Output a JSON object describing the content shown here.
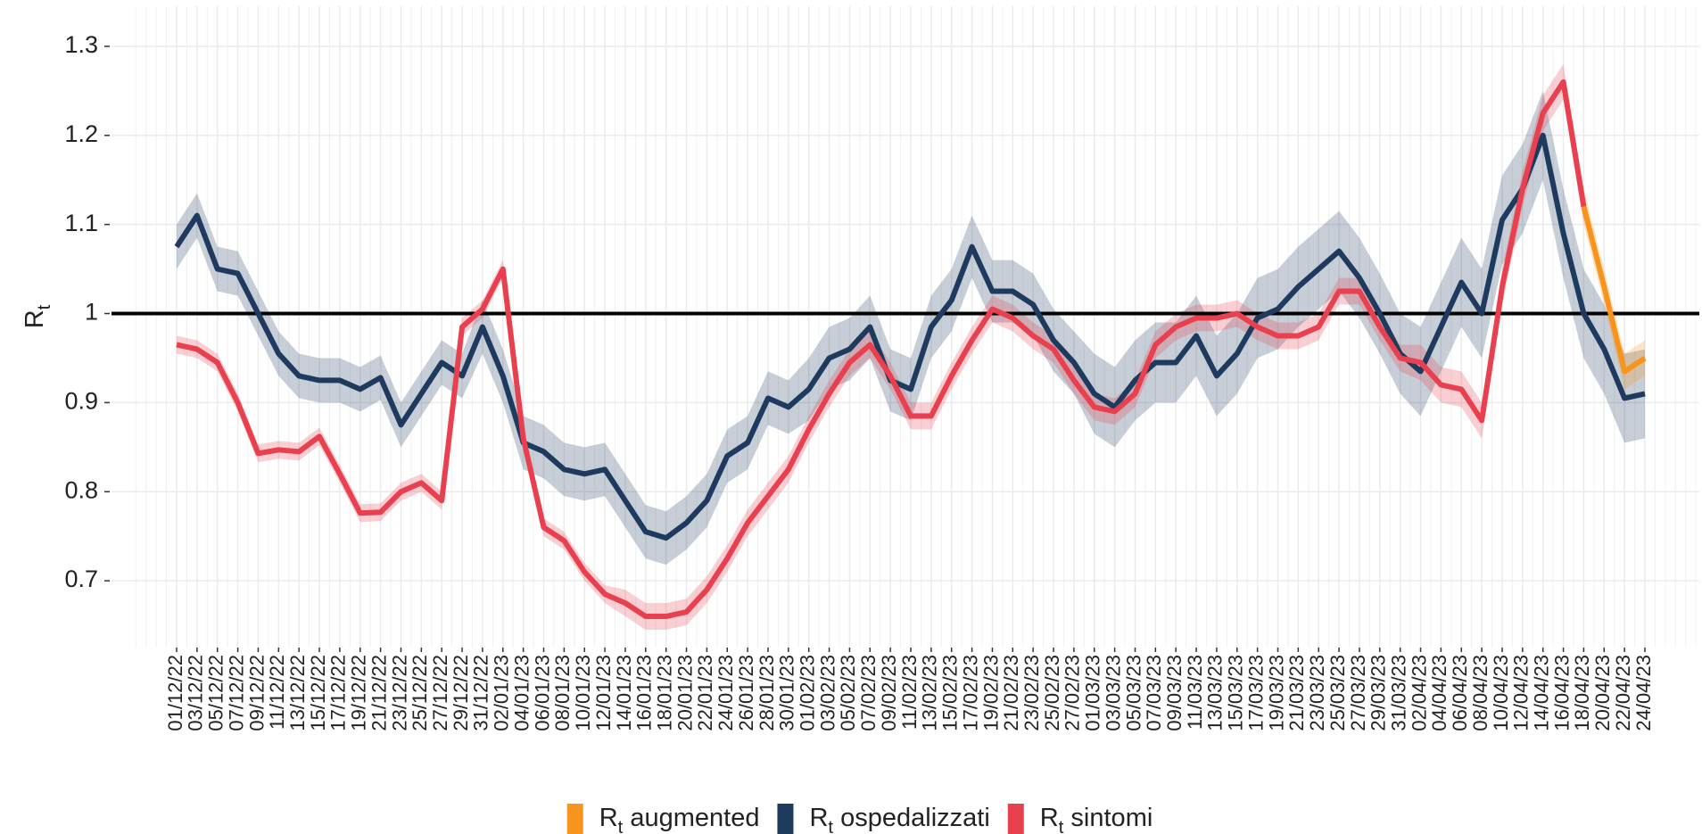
{
  "chart_data": {
    "type": "line",
    "y_label": "Rt",
    "categories": [
      "01/12/22",
      "03/12/22",
      "05/12/22",
      "07/12/22",
      "09/12/22",
      "11/12/22",
      "13/12/22",
      "15/12/22",
      "17/12/22",
      "19/12/22",
      "21/12/22",
      "23/12/22",
      "25/12/22",
      "27/12/22",
      "29/12/22",
      "31/12/22",
      "02/01/23",
      "04/01/23",
      "06/01/23",
      "08/01/23",
      "10/01/23",
      "12/01/23",
      "14/01/23",
      "16/01/23",
      "18/01/23",
      "20/01/23",
      "22/01/23",
      "24/01/23",
      "26/01/23",
      "28/01/23",
      "30/01/23",
      "01/02/23",
      "03/02/23",
      "05/02/23",
      "07/02/23",
      "09/02/23",
      "11/02/23",
      "13/02/23",
      "15/02/23",
      "17/02/23",
      "19/02/23",
      "21/02/23",
      "23/02/23",
      "25/02/23",
      "27/02/23",
      "01/03/23",
      "03/03/23",
      "05/03/23",
      "07/03/23",
      "09/03/23",
      "11/03/23",
      "13/03/23",
      "15/03/23",
      "17/03/23",
      "19/03/23",
      "21/03/23",
      "23/03/23",
      "25/03/23",
      "27/03/23",
      "29/03/23",
      "31/03/23",
      "02/04/23",
      "04/04/23",
      "06/04/23",
      "08/04/23",
      "10/04/23",
      "12/04/23",
      "14/04/23",
      "16/04/23",
      "18/04/23",
      "20/04/23",
      "22/04/23",
      "24/04/23"
    ],
    "ylim": [
      0.625,
      1.345
    ],
    "yticks": [
      0.7,
      0.8,
      0.9,
      1.0,
      1.1,
      1.2,
      1.3
    ],
    "hline": 1.0,
    "grid": true,
    "legend": "bottom",
    "series": [
      {
        "name": "Rt augmented",
        "color": "#f7941d",
        "values": [
          null,
          null,
          null,
          null,
          null,
          null,
          null,
          null,
          null,
          null,
          null,
          null,
          null,
          null,
          null,
          null,
          null,
          null,
          null,
          null,
          null,
          null,
          null,
          null,
          null,
          null,
          null,
          null,
          null,
          null,
          null,
          null,
          null,
          null,
          null,
          null,
          null,
          null,
          null,
          null,
          null,
          null,
          null,
          null,
          null,
          null,
          null,
          null,
          null,
          null,
          null,
          null,
          null,
          null,
          null,
          null,
          null,
          null,
          null,
          null,
          null,
          null,
          null,
          null,
          null,
          null,
          null,
          null,
          null,
          1.12,
          1.03,
          0.935,
          0.95
        ],
        "lower": [
          null,
          null,
          null,
          null,
          null,
          null,
          null,
          null,
          null,
          null,
          null,
          null,
          null,
          null,
          null,
          null,
          null,
          null,
          null,
          null,
          null,
          null,
          null,
          null,
          null,
          null,
          null,
          null,
          null,
          null,
          null,
          null,
          null,
          null,
          null,
          null,
          null,
          null,
          null,
          null,
          null,
          null,
          null,
          null,
          null,
          null,
          null,
          null,
          null,
          null,
          null,
          null,
          null,
          null,
          null,
          null,
          null,
          null,
          null,
          null,
          null,
          null,
          null,
          null,
          null,
          null,
          null,
          null,
          null,
          1.1,
          1.01,
          0.915,
          0.93
        ],
        "upper": [
          null,
          null,
          null,
          null,
          null,
          null,
          null,
          null,
          null,
          null,
          null,
          null,
          null,
          null,
          null,
          null,
          null,
          null,
          null,
          null,
          null,
          null,
          null,
          null,
          null,
          null,
          null,
          null,
          null,
          null,
          null,
          null,
          null,
          null,
          null,
          null,
          null,
          null,
          null,
          null,
          null,
          null,
          null,
          null,
          null,
          null,
          null,
          null,
          null,
          null,
          null,
          null,
          null,
          null,
          null,
          null,
          null,
          null,
          null,
          null,
          null,
          null,
          null,
          null,
          null,
          null,
          null,
          null,
          null,
          1.14,
          1.05,
          0.955,
          0.97
        ]
      },
      {
        "name": "Rt ospedalizzati",
        "color": "#1f3a5f",
        "values": [
          1.075,
          1.11,
          1.05,
          1.045,
          1.0,
          0.955,
          0.93,
          0.925,
          0.925,
          0.915,
          0.928,
          0.875,
          0.91,
          0.945,
          0.93,
          0.985,
          0.93,
          0.855,
          0.845,
          0.825,
          0.82,
          0.825,
          0.79,
          0.755,
          0.748,
          0.765,
          0.79,
          0.84,
          0.855,
          0.905,
          0.895,
          0.915,
          0.95,
          0.96,
          0.985,
          0.925,
          0.915,
          0.985,
          1.015,
          1.075,
          1.025,
          1.025,
          1.01,
          0.97,
          0.945,
          0.91,
          0.895,
          0.925,
          0.945,
          0.945,
          0.975,
          0.93,
          0.955,
          0.995,
          1.005,
          1.03,
          1.05,
          1.07,
          1.04,
          1.0,
          0.955,
          0.935,
          0.985,
          1.035,
          1.0,
          1.105,
          1.14,
          1.2,
          1.09,
          1.0,
          0.96,
          0.905,
          0.91
        ],
        "lower": [
          1.05,
          1.085,
          1.025,
          1.02,
          0.975,
          0.93,
          0.905,
          0.9,
          0.9,
          0.89,
          0.903,
          0.85,
          0.885,
          0.92,
          0.905,
          0.955,
          0.9,
          0.825,
          0.815,
          0.795,
          0.79,
          0.795,
          0.76,
          0.725,
          0.718,
          0.735,
          0.76,
          0.81,
          0.825,
          0.875,
          0.865,
          0.88,
          0.915,
          0.925,
          0.95,
          0.89,
          0.88,
          0.95,
          0.98,
          1.04,
          0.99,
          0.99,
          0.975,
          0.935,
          0.91,
          0.865,
          0.85,
          0.88,
          0.9,
          0.9,
          0.93,
          0.885,
          0.91,
          0.95,
          0.96,
          0.985,
          1.005,
          1.025,
          0.995,
          0.955,
          0.91,
          0.885,
          0.935,
          0.985,
          0.95,
          1.055,
          1.09,
          1.15,
          1.04,
          0.95,
          0.91,
          0.855,
          0.86
        ],
        "upper": [
          1.1,
          1.135,
          1.075,
          1.07,
          1.025,
          0.98,
          0.955,
          0.95,
          0.95,
          0.94,
          0.953,
          0.9,
          0.935,
          0.97,
          0.955,
          1.015,
          0.96,
          0.885,
          0.875,
          0.855,
          0.85,
          0.855,
          0.82,
          0.785,
          0.778,
          0.795,
          0.82,
          0.87,
          0.885,
          0.935,
          0.925,
          0.95,
          0.985,
          0.995,
          1.02,
          0.96,
          0.95,
          1.02,
          1.05,
          1.11,
          1.06,
          1.06,
          1.045,
          1.005,
          0.98,
          0.955,
          0.94,
          0.97,
          0.99,
          0.99,
          1.02,
          0.975,
          1.0,
          1.04,
          1.05,
          1.075,
          1.095,
          1.115,
          1.085,
          1.045,
          1.0,
          0.985,
          1.035,
          1.085,
          1.05,
          1.155,
          1.19,
          1.25,
          1.14,
          1.05,
          1.01,
          0.955,
          0.96
        ]
      },
      {
        "name": "Rt sintomi",
        "color": "#e8404f",
        "values": [
          0.965,
          0.96,
          0.945,
          0.9,
          0.843,
          0.847,
          0.845,
          0.862,
          0.82,
          0.776,
          0.777,
          0.8,
          0.81,
          0.79,
          0.985,
          1.005,
          1.05,
          0.86,
          0.76,
          0.745,
          0.71,
          0.685,
          0.675,
          0.66,
          0.66,
          0.665,
          0.69,
          0.725,
          0.765,
          0.795,
          0.825,
          0.87,
          0.91,
          0.945,
          0.965,
          0.93,
          0.885,
          0.885,
          0.93,
          0.97,
          1.005,
          0.995,
          0.975,
          0.96,
          0.925,
          0.895,
          0.89,
          0.91,
          0.965,
          0.985,
          0.995,
          0.995,
          1.0,
          0.985,
          0.975,
          0.975,
          0.985,
          1.025,
          1.025,
          0.985,
          0.95,
          0.945,
          0.92,
          0.915,
          0.88,
          1.03,
          1.14,
          1.225,
          1.26,
          1.12,
          null,
          null,
          null
        ],
        "lower": [
          0.955,
          0.95,
          0.935,
          0.89,
          0.833,
          0.837,
          0.835,
          0.852,
          0.81,
          0.766,
          0.767,
          0.79,
          0.8,
          0.78,
          0.975,
          0.995,
          1.04,
          0.85,
          0.75,
          0.735,
          0.7,
          0.675,
          0.66,
          0.645,
          0.645,
          0.65,
          0.675,
          0.71,
          0.75,
          0.78,
          0.81,
          0.855,
          0.895,
          0.93,
          0.95,
          0.915,
          0.87,
          0.87,
          0.915,
          0.955,
          0.99,
          0.98,
          0.96,
          0.945,
          0.91,
          0.88,
          0.875,
          0.895,
          0.95,
          0.97,
          0.98,
          0.98,
          0.985,
          0.97,
          0.96,
          0.96,
          0.97,
          1.01,
          1.01,
          0.97,
          0.935,
          0.925,
          0.9,
          0.895,
          0.86,
          1.01,
          1.12,
          1.205,
          1.24,
          1.1,
          null,
          null,
          null
        ],
        "upper": [
          0.975,
          0.97,
          0.955,
          0.91,
          0.853,
          0.857,
          0.855,
          0.872,
          0.83,
          0.786,
          0.787,
          0.81,
          0.82,
          0.8,
          0.995,
          1.015,
          1.06,
          0.87,
          0.77,
          0.755,
          0.72,
          0.695,
          0.69,
          0.675,
          0.675,
          0.68,
          0.705,
          0.74,
          0.78,
          0.81,
          0.84,
          0.885,
          0.925,
          0.96,
          0.98,
          0.945,
          0.9,
          0.9,
          0.945,
          0.985,
          1.02,
          1.01,
          0.99,
          0.975,
          0.94,
          0.91,
          0.905,
          0.925,
          0.98,
          1.0,
          1.01,
          1.01,
          1.015,
          1.0,
          0.99,
          0.99,
          1.0,
          1.04,
          1.04,
          1.0,
          0.965,
          0.965,
          0.94,
          0.935,
          0.9,
          1.05,
          1.16,
          1.245,
          1.28,
          1.14,
          null,
          null,
          null
        ]
      }
    ]
  }
}
